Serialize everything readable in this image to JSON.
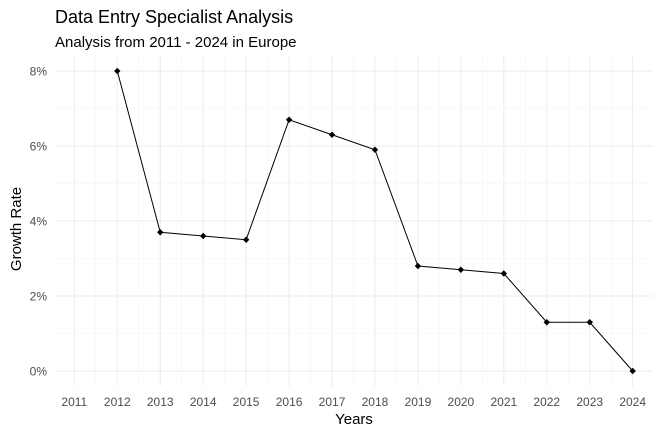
{
  "chart_data": {
    "type": "line",
    "title": "Data Entry Specialist Analysis",
    "subtitle": "Analysis from 2011 - 2024 in Europe",
    "xlabel": "Years",
    "ylabel": "Growth Rate",
    "x": [
      2012,
      2013,
      2014,
      2015,
      2016,
      2017,
      2018,
      2019,
      2020,
      2021,
      2022,
      2023,
      2024
    ],
    "values": [
      8.0,
      3.7,
      3.6,
      3.5,
      6.7,
      6.3,
      5.9,
      2.8,
      2.7,
      2.6,
      1.3,
      1.3,
      0.0
    ],
    "x_ticks": [
      "2011",
      "2012",
      "2013",
      "2014",
      "2015",
      "2016",
      "2017",
      "2018",
      "2019",
      "2020",
      "2021",
      "2022",
      "2023",
      "2024"
    ],
    "y_ticks": [
      "0%",
      "2%",
      "4%",
      "6%",
      "8%"
    ],
    "y_tick_values": [
      0,
      2,
      4,
      6,
      8
    ],
    "xlim": [
      2010.55,
      2024.45
    ],
    "ylim": [
      -0.4,
      8.4
    ],
    "grid": true,
    "legend": "none",
    "line_color": "#000000",
    "grid_major_color": "#ebebeb",
    "grid_minor_color": "#f4f4f4",
    "tick_label_color": "#4d4d4d"
  }
}
